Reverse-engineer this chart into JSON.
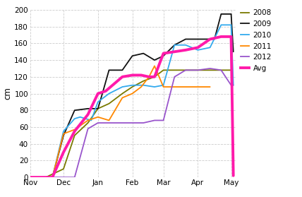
{
  "background_color": "#ffffff",
  "grid_color": "#cccccc",
  "ylabel": "cm",
  "ylim": [
    0,
    200
  ],
  "yticks": [
    0,
    20,
    40,
    60,
    80,
    100,
    120,
    140,
    160,
    180,
    200
  ],
  "xtick_labels": [
    "Nov",
    "Dec",
    "Jan",
    "Feb",
    "Mar",
    "Apr",
    "May"
  ],
  "xtick_positions": [
    0,
    30,
    61,
    92,
    120,
    151,
    181
  ],
  "xlim": [
    0,
    185
  ],
  "series": {
    "2008": {
      "color": "#7a7a00",
      "linewidth": 1.3,
      "x": [
        0,
        14,
        30,
        40,
        52,
        61,
        71,
        83,
        92,
        102,
        112,
        120,
        135,
        151,
        162,
        172,
        182
      ],
      "y": [
        0,
        0,
        10,
        50,
        65,
        82,
        88,
        100,
        108,
        115,
        120,
        128,
        128,
        128,
        128,
        128,
        128
      ]
    },
    "2009": {
      "color": "#111111",
      "linewidth": 1.3,
      "x": [
        0,
        20,
        30,
        40,
        52,
        61,
        65,
        71,
        83,
        92,
        102,
        112,
        120,
        130,
        140,
        151,
        162,
        166,
        172,
        181,
        183
      ],
      "y": [
        0,
        0,
        50,
        80,
        82,
        82,
        100,
        128,
        128,
        145,
        148,
        140,
        145,
        158,
        165,
        165,
        165,
        165,
        195,
        195,
        150
      ]
    },
    "2010": {
      "color": "#33aaee",
      "linewidth": 1.3,
      "x": [
        0,
        20,
        30,
        40,
        45,
        55,
        61,
        71,
        83,
        92,
        102,
        112,
        120,
        130,
        140,
        151,
        162,
        172,
        181,
        183
      ],
      "y": [
        0,
        0,
        55,
        70,
        72,
        68,
        90,
        100,
        108,
        110,
        110,
        108,
        110,
        158,
        158,
        152,
        155,
        182,
        182,
        110
      ]
    },
    "2011": {
      "color": "#ff8800",
      "linewidth": 1.3,
      "x": [
        0,
        20,
        30,
        40,
        52,
        61,
        71,
        83,
        92,
        100,
        107,
        112,
        120,
        130,
        140,
        151,
        162
      ],
      "y": [
        0,
        0,
        52,
        57,
        68,
        72,
        68,
        95,
        100,
        108,
        120,
        133,
        108,
        108,
        108,
        108,
        108
      ]
    },
    "2012": {
      "color": "#9955cc",
      "linewidth": 1.3,
      "x": [
        0,
        20,
        30,
        40,
        52,
        61,
        71,
        83,
        92,
        102,
        112,
        120,
        130,
        140,
        151,
        162,
        172,
        181,
        183
      ],
      "y": [
        0,
        0,
        0,
        0,
        58,
        65,
        65,
        65,
        65,
        65,
        68,
        68,
        120,
        128,
        128,
        130,
        128,
        110,
        110
      ]
    },
    "Avg": {
      "color": "#ff1aaa",
      "linewidth": 2.8,
      "x": [
        0,
        5,
        20,
        30,
        40,
        52,
        61,
        68,
        83,
        92,
        100,
        107,
        112,
        120,
        130,
        140,
        151,
        162,
        172,
        181,
        183
      ],
      "y": [
        0,
        0,
        0,
        30,
        55,
        75,
        100,
        103,
        120,
        122,
        122,
        120,
        120,
        148,
        150,
        152,
        155,
        165,
        168,
        168,
        2
      ]
    }
  },
  "legend_order": [
    "2008",
    "2009",
    "2010",
    "2011",
    "2012",
    "Avg"
  ]
}
